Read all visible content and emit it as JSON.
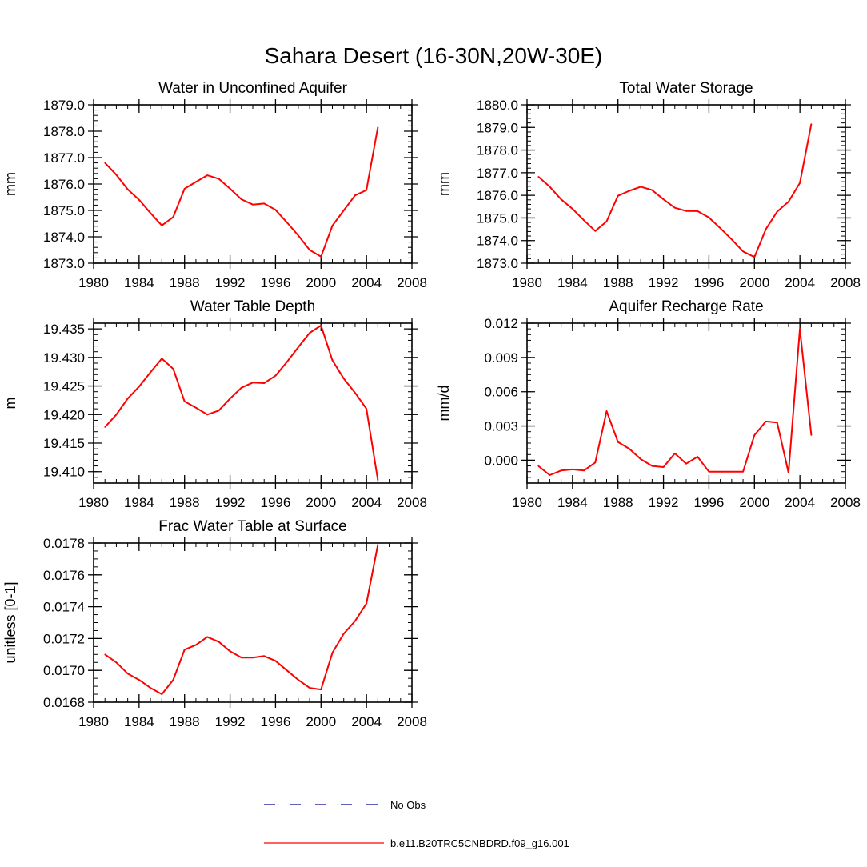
{
  "figure": {
    "title": "Sahara Desert (16-30N,20W-30E)",
    "series_color": "#ff0000",
    "legend": [
      {
        "label": "No Obs",
        "color": "#00008b",
        "style": "dashed"
      },
      {
        "label": "b.e11.B20TRC5CNBDRD.f09_g16.001",
        "color": "#ff0000",
        "style": "solid"
      }
    ]
  },
  "chart_data": [
    {
      "type": "line",
      "title": "Water in Unconfined Aquifer",
      "ylabel": "mm",
      "xlim": [
        1980,
        2008
      ],
      "ylim": [
        1873.0,
        1879.0
      ],
      "xticks": [
        1980,
        1984,
        1988,
        1992,
        1996,
        2000,
        2004,
        2008
      ],
      "yticks": [
        1873.0,
        1874.0,
        1875.0,
        1876.0,
        1877.0,
        1878.0,
        1879.0
      ],
      "ytick_labels": [
        "1873.0",
        "1874.0",
        "1875.0",
        "1876.0",
        "1877.0",
        "1878.0",
        "1879.0"
      ],
      "xminor": 1,
      "yminor": 0.2,
      "x": [
        1981,
        1982,
        1983,
        1984,
        1985,
        1986,
        1987,
        1988,
        1989,
        1990,
        1991,
        1992,
        1993,
        1994,
        1995,
        1996,
        1997,
        1998,
        1999,
        2000,
        2001,
        2002,
        2003,
        2004,
        2005
      ],
      "series": [
        {
          "name": "b.e11.B20TRC5CNBDRD.f09_g16.001",
          "values": [
            1876.8,
            1876.35,
            1875.8,
            1875.4,
            1874.9,
            1874.43,
            1874.75,
            1875.82,
            1876.08,
            1876.33,
            1876.2,
            1875.82,
            1875.42,
            1875.22,
            1875.26,
            1875.02,
            1874.55,
            1874.05,
            1873.5,
            1873.25,
            1874.42,
            1875.0,
            1875.57,
            1875.77,
            1878.15
          ]
        }
      ]
    },
    {
      "type": "line",
      "title": "Total Water Storage",
      "ylabel": "mm",
      "xlim": [
        1980,
        2008
      ],
      "ylim": [
        1873.0,
        1880.0
      ],
      "xticks": [
        1980,
        1984,
        1988,
        1992,
        1996,
        2000,
        2004,
        2008
      ],
      "yticks": [
        1873.0,
        1874.0,
        1875.0,
        1876.0,
        1877.0,
        1878.0,
        1879.0,
        1880.0
      ],
      "ytick_labels": [
        "1873.0",
        "1874.0",
        "1875.0",
        "1876.0",
        "1877.0",
        "1878.0",
        "1879.0",
        "1880.0"
      ],
      "xminor": 1,
      "yminor": 0.2,
      "x": [
        1981,
        1982,
        1983,
        1984,
        1985,
        1986,
        1987,
        1988,
        1989,
        1990,
        1991,
        1992,
        1993,
        1994,
        1995,
        1996,
        1997,
        1998,
        1999,
        2000,
        2001,
        2002,
        2003,
        2004,
        2005
      ],
      "series": [
        {
          "name": "b.e11.B20TRC5CNBDRD.f09_g16.001",
          "values": [
            1876.82,
            1876.38,
            1875.82,
            1875.4,
            1874.9,
            1874.42,
            1874.85,
            1875.98,
            1876.2,
            1876.38,
            1876.23,
            1875.82,
            1875.45,
            1875.31,
            1875.3,
            1875.02,
            1874.55,
            1874.05,
            1873.52,
            1873.27,
            1874.5,
            1875.28,
            1875.72,
            1876.55,
            1879.15
          ]
        }
      ]
    },
    {
      "type": "line",
      "title": "Water Table Depth",
      "ylabel": "m",
      "xlim": [
        1980,
        2008
      ],
      "ylim": [
        19.408,
        19.436
      ],
      "xticks": [
        1980,
        1984,
        1988,
        1992,
        1996,
        2000,
        2004,
        2008
      ],
      "yticks": [
        19.41,
        19.415,
        19.42,
        19.425,
        19.43,
        19.435
      ],
      "ytick_labels": [
        "19.410",
        "19.415",
        "19.420",
        "19.425",
        "19.430",
        "19.435"
      ],
      "xminor": 1,
      "yminor": 0.001,
      "x": [
        1981,
        1982,
        1983,
        1984,
        1985,
        1986,
        1987,
        1988,
        1989,
        1990,
        1991,
        1992,
        1993,
        1994,
        1995,
        1996,
        1997,
        1998,
        1999,
        2000,
        2001,
        2002,
        2003,
        2004,
        2005
      ],
      "series": [
        {
          "name": "b.e11.B20TRC5CNBDRD.f09_g16.001",
          "values": [
            19.4178,
            19.42,
            19.4228,
            19.4249,
            19.4274,
            19.4298,
            19.428,
            19.4223,
            19.4212,
            19.42,
            19.4207,
            19.4228,
            19.4247,
            19.4256,
            19.4255,
            19.4268,
            19.4292,
            19.4318,
            19.4343,
            19.4356,
            19.4295,
            19.4263,
            19.4238,
            19.421,
            19.4085
          ]
        }
      ]
    },
    {
      "type": "line",
      "title": "Aquifer Recharge Rate",
      "ylabel": "mm/d",
      "xlim": [
        1980,
        2008
      ],
      "ylim": [
        -0.002,
        0.012
      ],
      "xticks": [
        1980,
        1984,
        1988,
        1992,
        1996,
        2000,
        2004,
        2008
      ],
      "yticks": [
        0.0,
        0.003,
        0.006,
        0.009,
        0.012
      ],
      "ytick_labels": [
        "0.000",
        "0.003",
        "0.006",
        "0.009",
        "0.012"
      ],
      "xminor": 1,
      "yminor": 0.0005,
      "x": [
        1981,
        1982,
        1983,
        1984,
        1985,
        1986,
        1987,
        1988,
        1989,
        1990,
        1991,
        1992,
        1993,
        1994,
        1995,
        1996,
        1997,
        1998,
        1999,
        2000,
        2001,
        2002,
        2003,
        2004,
        2005
      ],
      "series": [
        {
          "name": "b.e11.B20TRC5CNBDRD.f09_g16.001",
          "values": [
            -0.0005,
            -0.0013,
            -0.0009,
            -0.0008,
            -0.0009,
            -0.0002,
            0.0043,
            0.0016,
            0.001,
            0.0001,
            -0.0005,
            -0.0006,
            0.0006,
            -0.0003,
            0.0003,
            -0.001,
            -0.001,
            -0.001,
            -0.001,
            0.0022,
            0.0034,
            0.0033,
            -0.0011,
            0.0115,
            0.0022
          ]
        }
      ]
    },
    {
      "type": "line",
      "title": "Frac Water Table at Surface",
      "ylabel": "unitless [0-1]",
      "xlim": [
        1980,
        2008
      ],
      "ylim": [
        0.0168,
        0.0178
      ],
      "xticks": [
        1980,
        1984,
        1988,
        1992,
        1996,
        2000,
        2004,
        2008
      ],
      "yticks": [
        0.0168,
        0.017,
        0.0172,
        0.0174,
        0.0176,
        0.0178
      ],
      "ytick_labels": [
        "0.0168",
        "0.0170",
        "0.0172",
        "0.0174",
        "0.0176",
        "0.0178"
      ],
      "xminor": 1,
      "yminor": 5e-05,
      "x": [
        1981,
        1982,
        1983,
        1984,
        1985,
        1986,
        1987,
        1988,
        1989,
        1990,
        1991,
        1992,
        1993,
        1994,
        1995,
        1996,
        1997,
        1998,
        1999,
        2000,
        2001,
        2002,
        2003,
        2004,
        2005
      ],
      "series": [
        {
          "name": "b.e11.B20TRC5CNBDRD.f09_g16.001",
          "values": [
            0.0171,
            0.01705,
            0.01698,
            0.01694,
            0.01689,
            0.01685,
            0.01694,
            0.01713,
            0.01716,
            0.01721,
            0.01718,
            0.01712,
            0.01708,
            0.01708,
            0.01709,
            0.01706,
            0.017,
            0.01694,
            0.01689,
            0.01688,
            0.01711,
            0.01723,
            0.01731,
            0.01742,
            0.01779
          ]
        }
      ]
    }
  ]
}
